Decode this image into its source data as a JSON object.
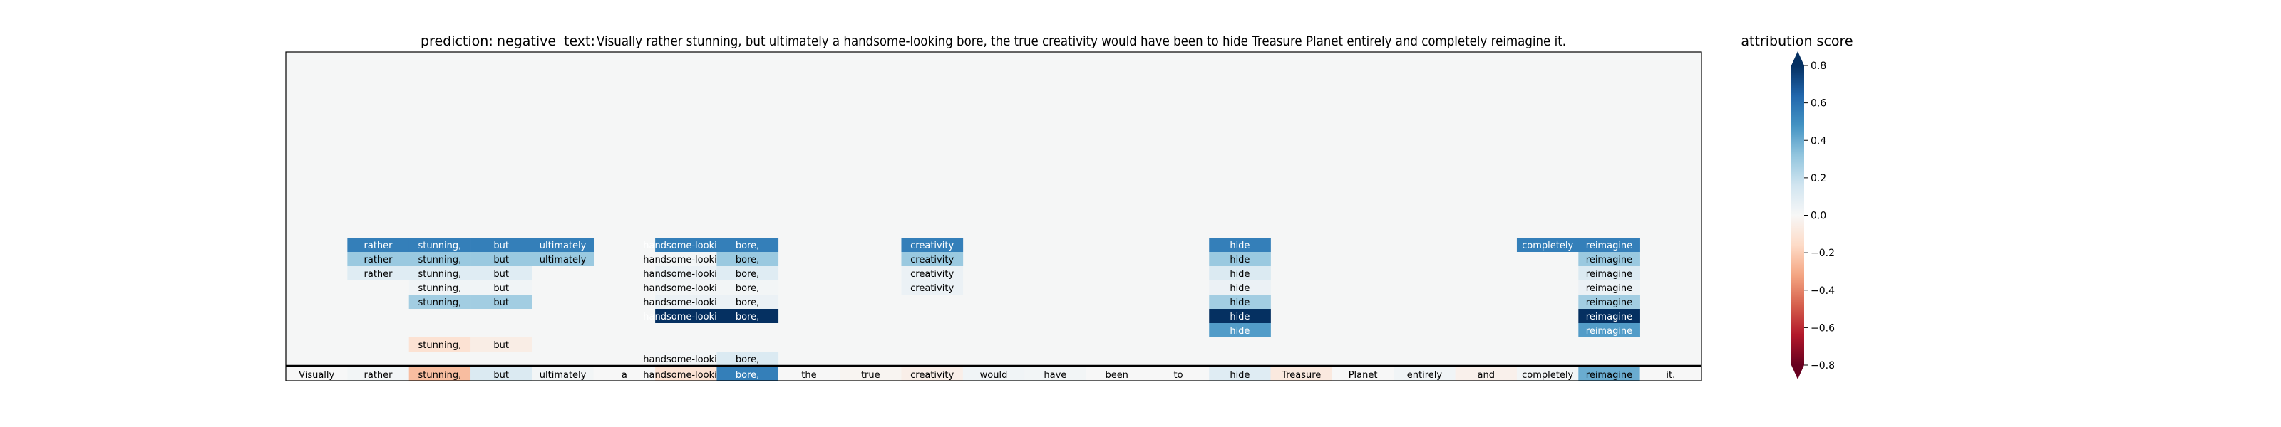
{
  "header": {
    "prediction_label": "prediction:",
    "prediction_value": "negative",
    "text_label": "text:",
    "text_value": "Visually rather stunning, but ultimately a handsome-looking bore, the true creativity would have been to hide Treasure Planet entirely and completely reimagine it."
  },
  "colorbar": {
    "title": "attribution score",
    "ticks": [
      "0.8",
      "0.6",
      "0.4",
      "0.2",
      "0.0",
      "−0.2",
      "−0.4",
      "−0.6",
      "−0.8"
    ],
    "tick_values": [
      0.8,
      0.6,
      0.4,
      0.2,
      0.0,
      -0.2,
      -0.4,
      -0.6,
      -0.8
    ],
    "range": [
      -0.8,
      0.8
    ],
    "colormap": "RdBu",
    "extend": "both"
  },
  "chart_data": {
    "type": "heatmap",
    "tokens": [
      "Visually",
      "rather",
      "stunning,",
      "but",
      "ultimately",
      "a",
      "handsome-looking",
      "bore,",
      "the",
      "true",
      "creativity",
      "would",
      "have",
      "been",
      "to",
      "hide",
      "Treasure",
      "Planet",
      "entirely",
      "and",
      "completely",
      "reimagine",
      "it."
    ],
    "bottom_row": [
      0.0,
      0.02,
      -0.25,
      0.12,
      0.02,
      0.0,
      -0.12,
      0.55,
      0.0,
      -0.02,
      -0.05,
      0.03,
      0.02,
      0.0,
      0.0,
      0.1,
      -0.08,
      0.0,
      0.03,
      -0.04,
      0.02,
      0.4,
      0.0
    ],
    "rows": [
      {
        "level": 1,
        "cells": [
          {
            "t": 6,
            "v": 0.02
          },
          {
            "t": 7,
            "v": 0.12
          }
        ]
      },
      {
        "level": 2,
        "cells": [
          {
            "t": 2,
            "v": -0.12
          },
          {
            "t": 3,
            "v": -0.06
          }
        ]
      },
      {
        "level": 3,
        "cells": [
          {
            "t": 15,
            "v": 0.45
          },
          {
            "t": 21,
            "v": 0.45
          }
        ]
      },
      {
        "level": 4,
        "cells": [
          {
            "t": 6,
            "v": 0.8
          },
          {
            "t": 7,
            "v": 0.8
          },
          {
            "t": 15,
            "v": 0.8
          },
          {
            "t": 21,
            "v": 0.8
          }
        ]
      },
      {
        "level": 5,
        "cells": [
          {
            "t": 2,
            "v": 0.28
          },
          {
            "t": 3,
            "v": 0.28
          },
          {
            "t": 6,
            "v": 0.05
          },
          {
            "t": 7,
            "v": 0.05
          },
          {
            "t": 15,
            "v": 0.28
          },
          {
            "t": 21,
            "v": 0.28
          }
        ]
      },
      {
        "level": 6,
        "cells": [
          {
            "t": 2,
            "v": 0.03
          },
          {
            "t": 3,
            "v": 0.03
          },
          {
            "t": 6,
            "v": 0.02
          },
          {
            "t": 7,
            "v": 0.02
          },
          {
            "t": 10,
            "v": 0.05
          },
          {
            "t": 15,
            "v": 0.05
          },
          {
            "t": 21,
            "v": 0.05
          }
        ]
      },
      {
        "level": 7,
        "cells": [
          {
            "t": 1,
            "v": 0.1
          },
          {
            "t": 2,
            "v": 0.1
          },
          {
            "t": 3,
            "v": 0.1
          },
          {
            "t": 6,
            "v": 0.05
          },
          {
            "t": 7,
            "v": 0.1
          },
          {
            "t": 10,
            "v": 0.05
          },
          {
            "t": 15,
            "v": 0.12
          },
          {
            "t": 21,
            "v": 0.12
          }
        ]
      },
      {
        "level": 8,
        "cells": [
          {
            "t": 1,
            "v": 0.3
          },
          {
            "t": 2,
            "v": 0.3
          },
          {
            "t": 3,
            "v": 0.3
          },
          {
            "t": 4,
            "v": 0.3
          },
          {
            "t": 6,
            "v": 0.02
          },
          {
            "t": 7,
            "v": 0.3
          },
          {
            "t": 10,
            "v": 0.3
          },
          {
            "t": 15,
            "v": 0.3
          },
          {
            "t": 21,
            "v": 0.3
          }
        ]
      },
      {
        "level": 9,
        "cells": [
          {
            "t": 1,
            "v": 0.55
          },
          {
            "t": 2,
            "v": 0.55
          },
          {
            "t": 3,
            "v": 0.55
          },
          {
            "t": 4,
            "v": 0.55
          },
          {
            "t": 6,
            "v": 0.55
          },
          {
            "t": 7,
            "v": 0.55
          },
          {
            "t": 10,
            "v": 0.55
          },
          {
            "t": 15,
            "v": 0.55
          },
          {
            "t": 20,
            "v": 0.55
          },
          {
            "t": 21,
            "v": 0.55
          }
        ]
      }
    ]
  }
}
